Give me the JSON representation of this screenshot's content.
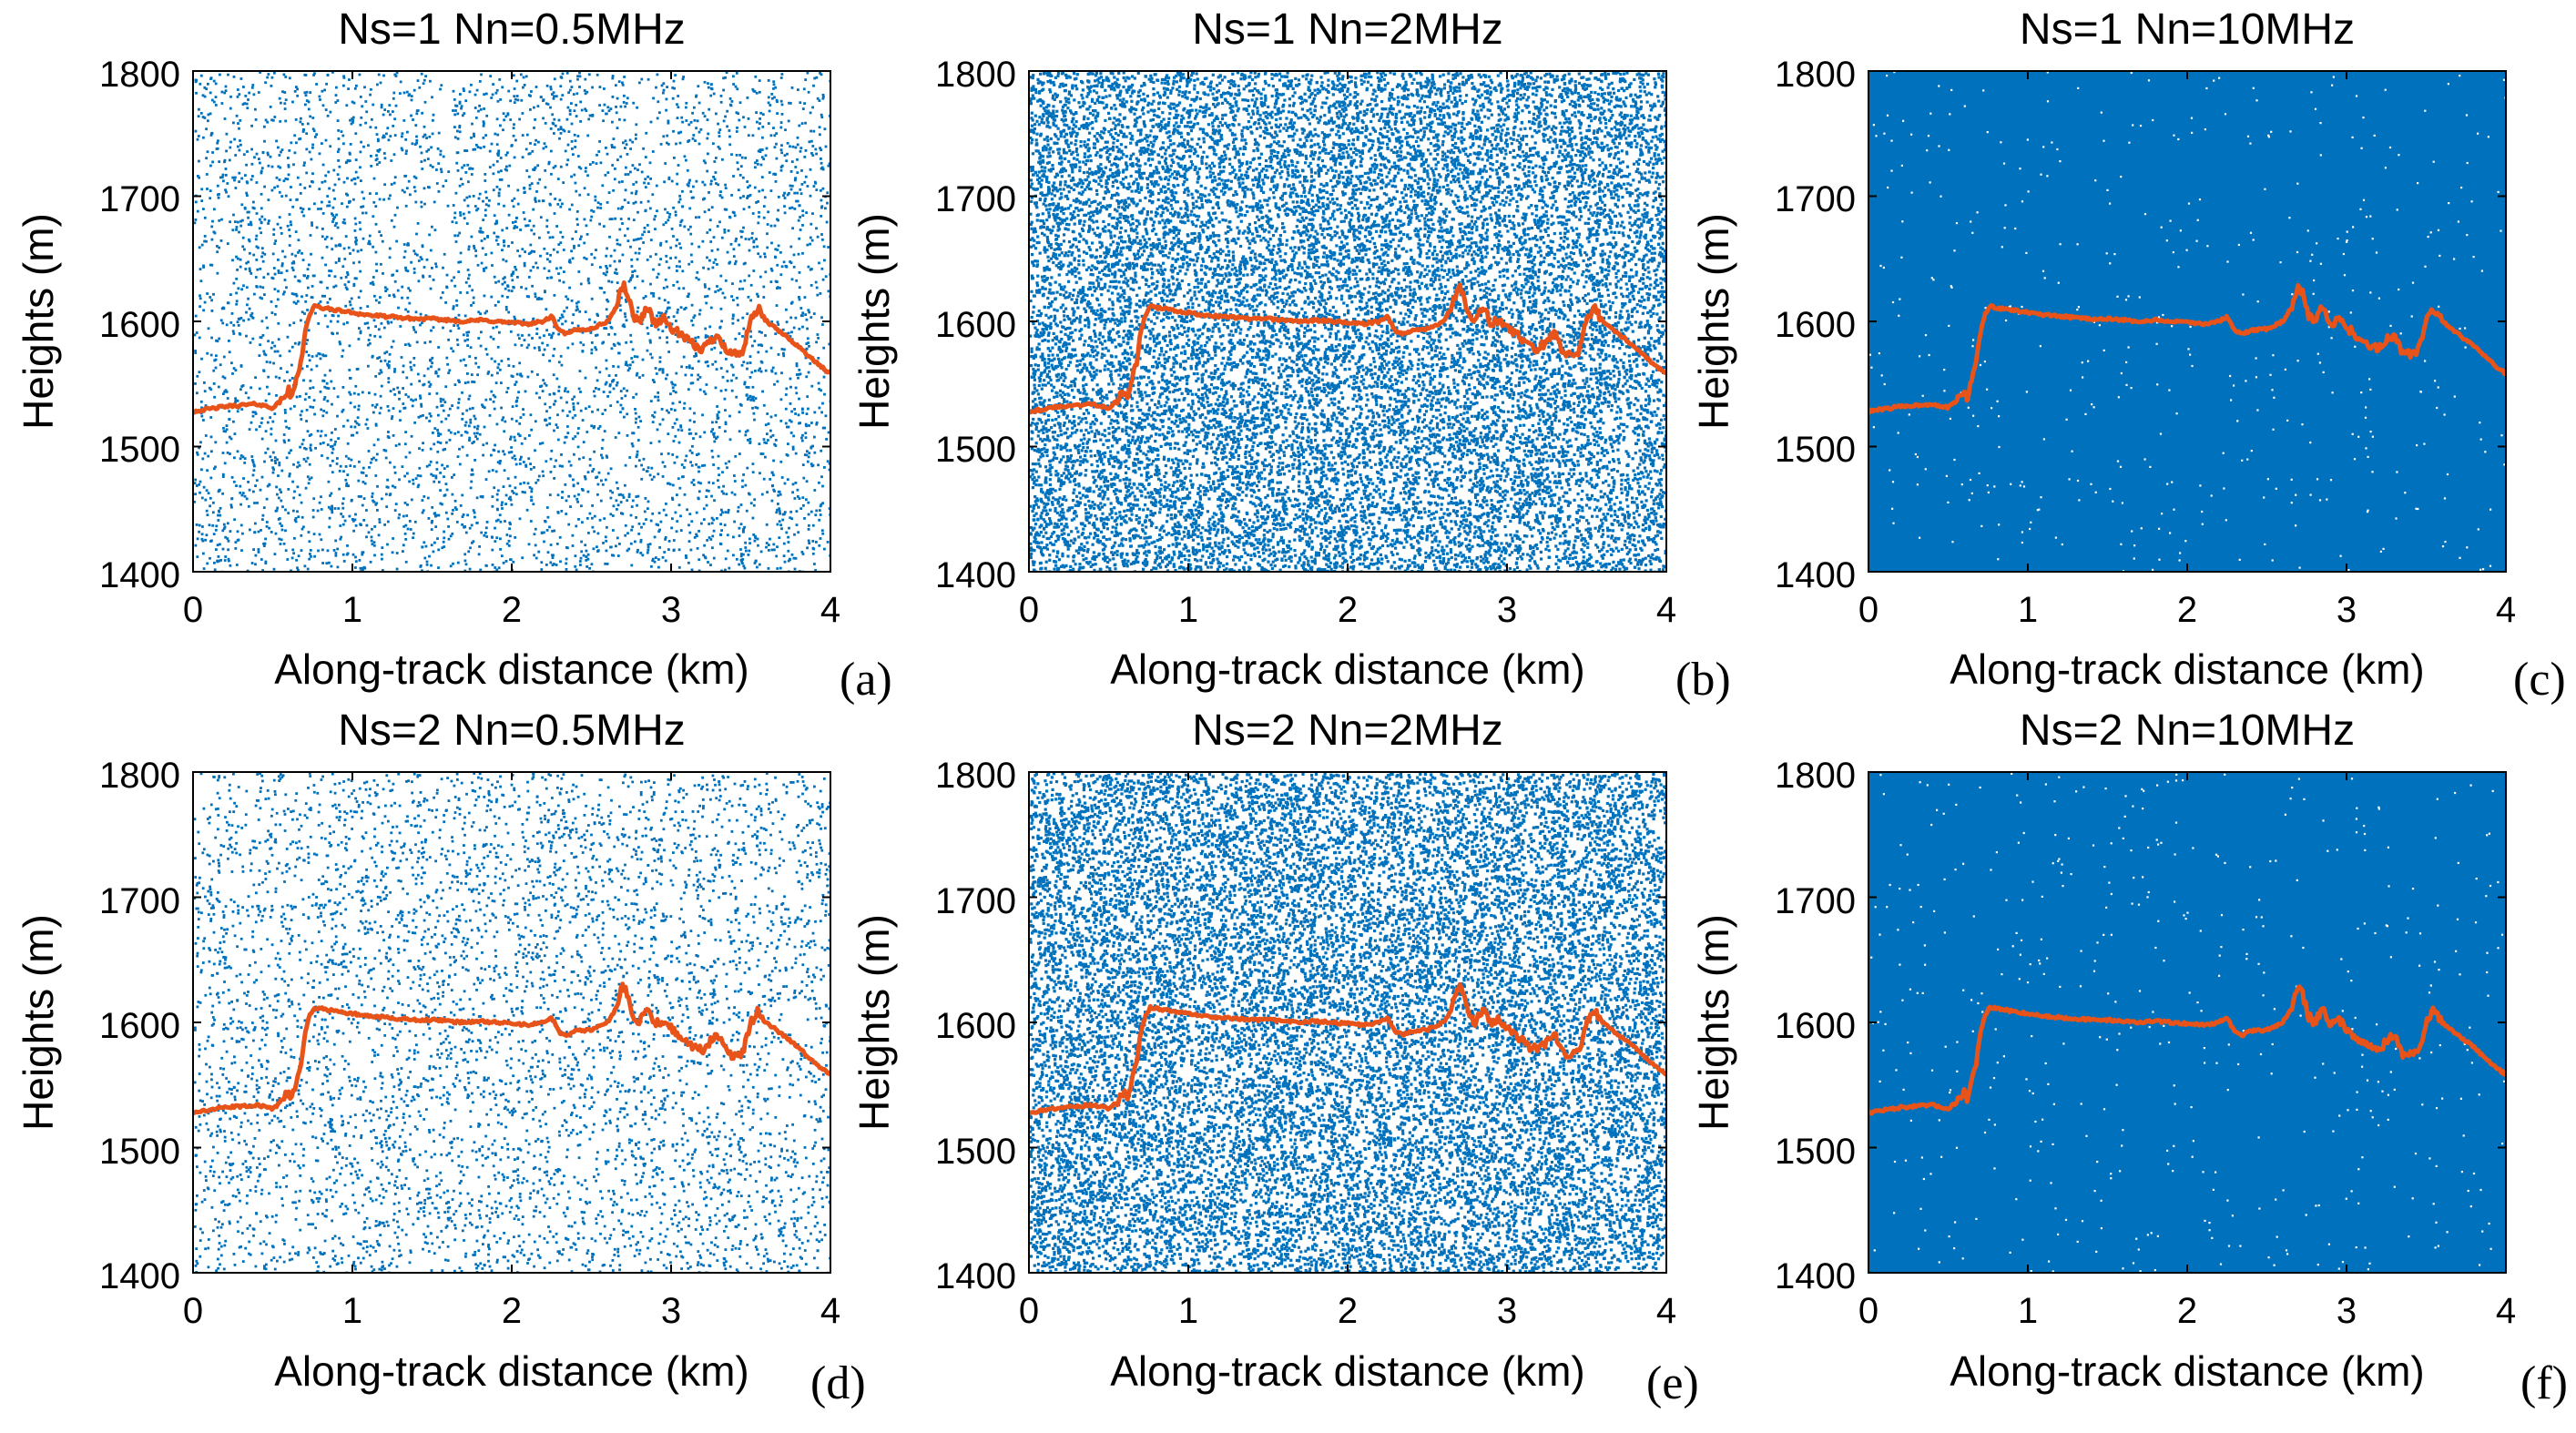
{
  "colors": {
    "noise": "#0072BD",
    "signal": "#E8531A",
    "axis": "#000000",
    "background": "#ffffff"
  },
  "chart_data": [
    {
      "type": "scatter",
      "panel": "(a)",
      "title": "Ns=1 Nn=0.5MHz",
      "xlabel": "Along-track distance (km)",
      "ylabel": "Heights (m)",
      "xlim": [
        0,
        4
      ],
      "ylim": [
        1400,
        1800
      ],
      "xticks": [
        0,
        1,
        2,
        3,
        4
      ],
      "yticks": [
        1400,
        1500,
        1600,
        1700,
        1800
      ],
      "series": [
        {
          "name": "noise photons",
          "density": "sparse",
          "relative_rate": 0.5
        },
        {
          "name": "surface signal",
          "ref": "surface_profile"
        }
      ]
    },
    {
      "type": "scatter",
      "panel": "(b)",
      "title": "Ns=1 Nn=2MHz",
      "xlabel": "Along-track distance (km)",
      "ylabel": "Heights (m)",
      "xlim": [
        0,
        4
      ],
      "ylim": [
        1400,
        1800
      ],
      "xticks": [
        0,
        1,
        2,
        3,
        4
      ],
      "yticks": [
        1400,
        1500,
        1600,
        1700,
        1800
      ],
      "series": [
        {
          "name": "noise photons",
          "density": "dense",
          "relative_rate": 2
        },
        {
          "name": "surface signal",
          "ref": "surface_profile"
        }
      ]
    },
    {
      "type": "scatter",
      "panel": "(c)",
      "title": "Ns=1 Nn=10MHz",
      "xlabel": "Along-track distance (km)",
      "ylabel": "Heights (m)",
      "xlim": [
        0,
        4
      ],
      "ylim": [
        1400,
        1800
      ],
      "xticks": [
        0,
        1,
        2,
        3,
        4
      ],
      "yticks": [
        1400,
        1500,
        1600,
        1700,
        1800
      ],
      "series": [
        {
          "name": "noise photons",
          "density": "saturated",
          "relative_rate": 10
        },
        {
          "name": "surface signal",
          "ref": "surface_profile"
        }
      ]
    },
    {
      "type": "scatter",
      "panel": "(d)",
      "title": "Ns=2 Nn=0.5MHz",
      "xlabel": "Along-track distance (km)",
      "ylabel": "Heights (m)",
      "xlim": [
        0,
        4
      ],
      "ylim": [
        1400,
        1800
      ],
      "xticks": [
        0,
        1,
        2,
        3,
        4
      ],
      "yticks": [
        1400,
        1500,
        1600,
        1700,
        1800
      ],
      "series": [
        {
          "name": "noise photons",
          "density": "sparse",
          "relative_rate": 0.5
        },
        {
          "name": "surface signal",
          "ref": "surface_profile"
        }
      ]
    },
    {
      "type": "scatter",
      "panel": "(e)",
      "title": "Ns=2 Nn=2MHz",
      "xlabel": "Along-track distance (km)",
      "ylabel": "Heights (m)",
      "xlim": [
        0,
        4
      ],
      "ylim": [
        1400,
        1800
      ],
      "xticks": [
        0,
        1,
        2,
        3,
        4
      ],
      "yticks": [
        1400,
        1500,
        1600,
        1700,
        1800
      ],
      "series": [
        {
          "name": "noise photons",
          "density": "dense",
          "relative_rate": 2
        },
        {
          "name": "surface signal",
          "ref": "surface_profile"
        }
      ]
    },
    {
      "type": "scatter",
      "panel": "(f)",
      "title": "Ns=2 Nn=10MHz",
      "xlabel": "Along-track distance (km)",
      "ylabel": "Heights (m)",
      "xlim": [
        0,
        4
      ],
      "ylim": [
        1400,
        1800
      ],
      "xticks": [
        0,
        1,
        2,
        3,
        4
      ],
      "yticks": [
        1400,
        1500,
        1600,
        1700,
        1800
      ],
      "series": [
        {
          "name": "noise photons",
          "density": "saturated",
          "relative_rate": 10
        },
        {
          "name": "surface signal",
          "ref": "surface_profile"
        }
      ]
    }
  ],
  "surface_profile": {
    "x": [
      0,
      0.1,
      0.2,
      0.3,
      0.4,
      0.5,
      0.55,
      0.6,
      0.62,
      0.65,
      0.68,
      0.7,
      0.73,
      0.76,
      0.8,
      0.9,
      1.0,
      1.1,
      1.2,
      1.3,
      1.4,
      1.5,
      1.6,
      1.7,
      1.8,
      1.9,
      2.0,
      2.1,
      2.2,
      2.25,
      2.3,
      2.35,
      2.4,
      2.5,
      2.6,
      2.65,
      2.7,
      2.73,
      2.76,
      2.8,
      2.85,
      2.9,
      2.95,
      3.0,
      3.05,
      3.1,
      3.15,
      3.2,
      3.25,
      3.3,
      3.35,
      3.4,
      3.45,
      3.5,
      3.55,
      3.6,
      3.7,
      3.8,
      3.9,
      4.0
    ],
    "y": [
      1528,
      1530,
      1532,
      1533,
      1534,
      1531,
      1536,
      1545,
      1538,
      1555,
      1570,
      1590,
      1605,
      1612,
      1611,
      1609,
      1607,
      1605,
      1604,
      1603,
      1602,
      1602,
      1601,
      1600,
      1601,
      1600,
      1599,
      1598,
      1600,
      1604,
      1592,
      1590,
      1593,
      1594,
      1600,
      1610,
      1630,
      1620,
      1605,
      1600,
      1612,
      1598,
      1602,
      1595,
      1590,
      1585,
      1580,
      1578,
      1585,
      1590,
      1575,
      1574,
      1576,
      1600,
      1610,
      1600,
      1590,
      1580,
      1568,
      1558
    ]
  },
  "panels": [
    {
      "title": "Ns=1 Nn=0.5MHz",
      "letter": "(a)",
      "xlabel": "Along-track distance (km)",
      "ylabel": "Heights (m)",
      "yticks": [
        "1800",
        "1700",
        "1600",
        "1500",
        "1400"
      ],
      "xticks": [
        "0",
        "1",
        "2",
        "3",
        "4"
      ]
    },
    {
      "title": "Ns=1 Nn=2MHz",
      "letter": "(b)",
      "xlabel": "Along-track distance (km)",
      "ylabel": "Heights (m)",
      "yticks": [
        "1800",
        "1700",
        "1600",
        "1500",
        "1400"
      ],
      "xticks": [
        "0",
        "1",
        "2",
        "3",
        "4"
      ]
    },
    {
      "title": "Ns=1 Nn=10MHz",
      "letter": "(c)",
      "xlabel": "Along-track distance (km)",
      "ylabel": "Heights (m)",
      "yticks": [
        "1800",
        "1700",
        "1600",
        "1500",
        "1400"
      ],
      "xticks": [
        "0",
        "1",
        "2",
        "3",
        "4"
      ]
    },
    {
      "title": "Ns=2 Nn=0.5MHz",
      "letter": "(d)",
      "xlabel": "Along-track distance (km)",
      "ylabel": "Heights (m)",
      "yticks": [
        "1800",
        "1700",
        "1600",
        "1500",
        "1400"
      ],
      "xticks": [
        "0",
        "1",
        "2",
        "3",
        "4"
      ]
    },
    {
      "title": "Ns=2 Nn=2MHz",
      "letter": "(e)",
      "xlabel": "Along-track distance (km)",
      "ylabel": "Heights (m)",
      "yticks": [
        "1800",
        "1700",
        "1600",
        "1500",
        "1400"
      ],
      "xticks": [
        "0",
        "1",
        "2",
        "3",
        "4"
      ]
    },
    {
      "title": "Ns=2 Nn=10MHz",
      "letter": "(f)",
      "xlabel": "Along-track distance (km)",
      "ylabel": "Heights (m)",
      "yticks": [
        "1800",
        "1700",
        "1600",
        "1500",
        "1400"
      ],
      "xticks": [
        "0",
        "1",
        "2",
        "3",
        "4"
      ]
    }
  ]
}
